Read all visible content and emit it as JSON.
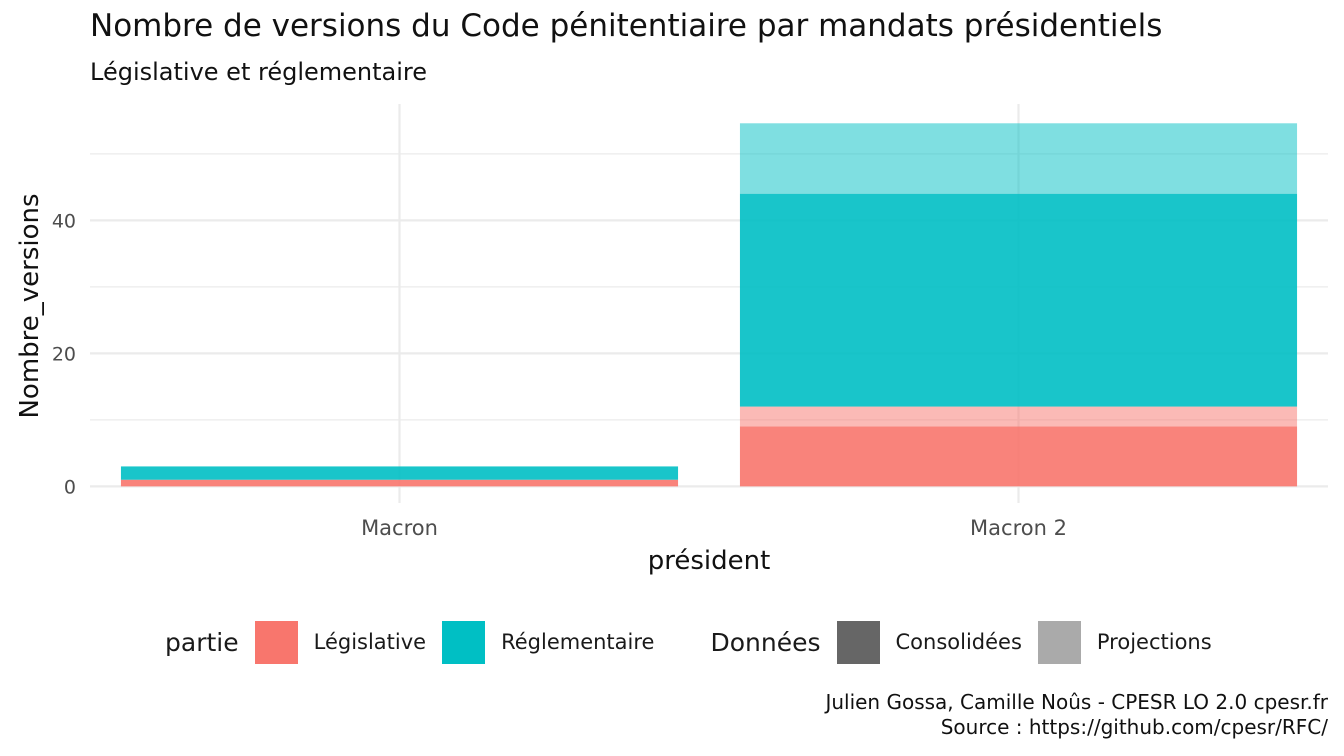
{
  "title": "Nombre de versions du Code pénitentiaire par mandats présidentiels",
  "subtitle": "Législative et réglementaire",
  "chart_data": {
    "type": "bar",
    "stacked": true,
    "categories": [
      "Macron",
      "Macron 2"
    ],
    "xlabel": "président",
    "ylabel": "Nombre_versions",
    "ylim": [
      -2.5,
      57.5
    ],
    "yticks": [
      0,
      20,
      40
    ],
    "grid": true,
    "legend_position": "bottom",
    "series": [
      {
        "partie": "Législative",
        "donnees": "Consolidées",
        "values": [
          1,
          9
        ],
        "color": "#F8766D",
        "opacity": 0.9
      },
      {
        "partie": "Législative",
        "donnees": "Projections",
        "values": [
          0,
          3
        ],
        "color": "#F8766D",
        "opacity": 0.5
      },
      {
        "partie": "Réglementaire",
        "donnees": "Consolidées",
        "values": [
          2,
          32
        ],
        "color": "#00BFC4",
        "opacity": 0.9
      },
      {
        "partie": "Réglementaire",
        "donnees": "Projections",
        "values": [
          0,
          10.6
        ],
        "color": "#00BFC4",
        "opacity": 0.5
      }
    ]
  },
  "legend": {
    "partie_title": "partie",
    "partie_items": [
      {
        "label": "Législative",
        "color": "#F8766D"
      },
      {
        "label": "Réglementaire",
        "color": "#00BFC4"
      }
    ],
    "donnees_title": "Données",
    "donnees_items": [
      {
        "label": "Consolidées",
        "color": "#666666"
      },
      {
        "label": "Projections",
        "color": "#AAAAAA"
      }
    ]
  },
  "caption": {
    "line1": "Julien Gossa, Camille Noûs - CPESR LO 2.0 cpesr.fr",
    "line2": "Source : https://github.com/cpesr/RFC/"
  }
}
